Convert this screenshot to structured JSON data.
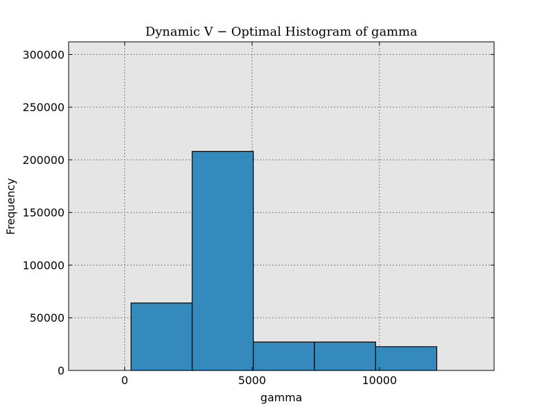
{
  "chart_data": {
    "type": "bar",
    "title": "Dynamic V − Optimal Histogram of gamma",
    "xlabel": "gamma",
    "ylabel": "Frequency",
    "xlim": [
      -2200,
      14500
    ],
    "ylim": [
      0,
      312000
    ],
    "x_ticks": [
      0,
      5000,
      10000
    ],
    "y_ticks": [
      0,
      50000,
      100000,
      150000,
      200000,
      250000,
      300000
    ],
    "grid": true,
    "legend": false,
    "bins": [
      {
        "start": 250,
        "end": 2650,
        "value": 64000
      },
      {
        "start": 2650,
        "end": 5050,
        "value": 208000
      },
      {
        "start": 5050,
        "end": 7450,
        "value": 27000
      },
      {
        "start": 7450,
        "end": 9850,
        "value": 27000
      },
      {
        "start": 9850,
        "end": 12250,
        "value": 22500
      }
    ],
    "colors": {
      "bar_fill": "#348abd",
      "bar_edge": "#000000",
      "plot_background": "#e5e5e5",
      "grid": "#555555"
    }
  }
}
